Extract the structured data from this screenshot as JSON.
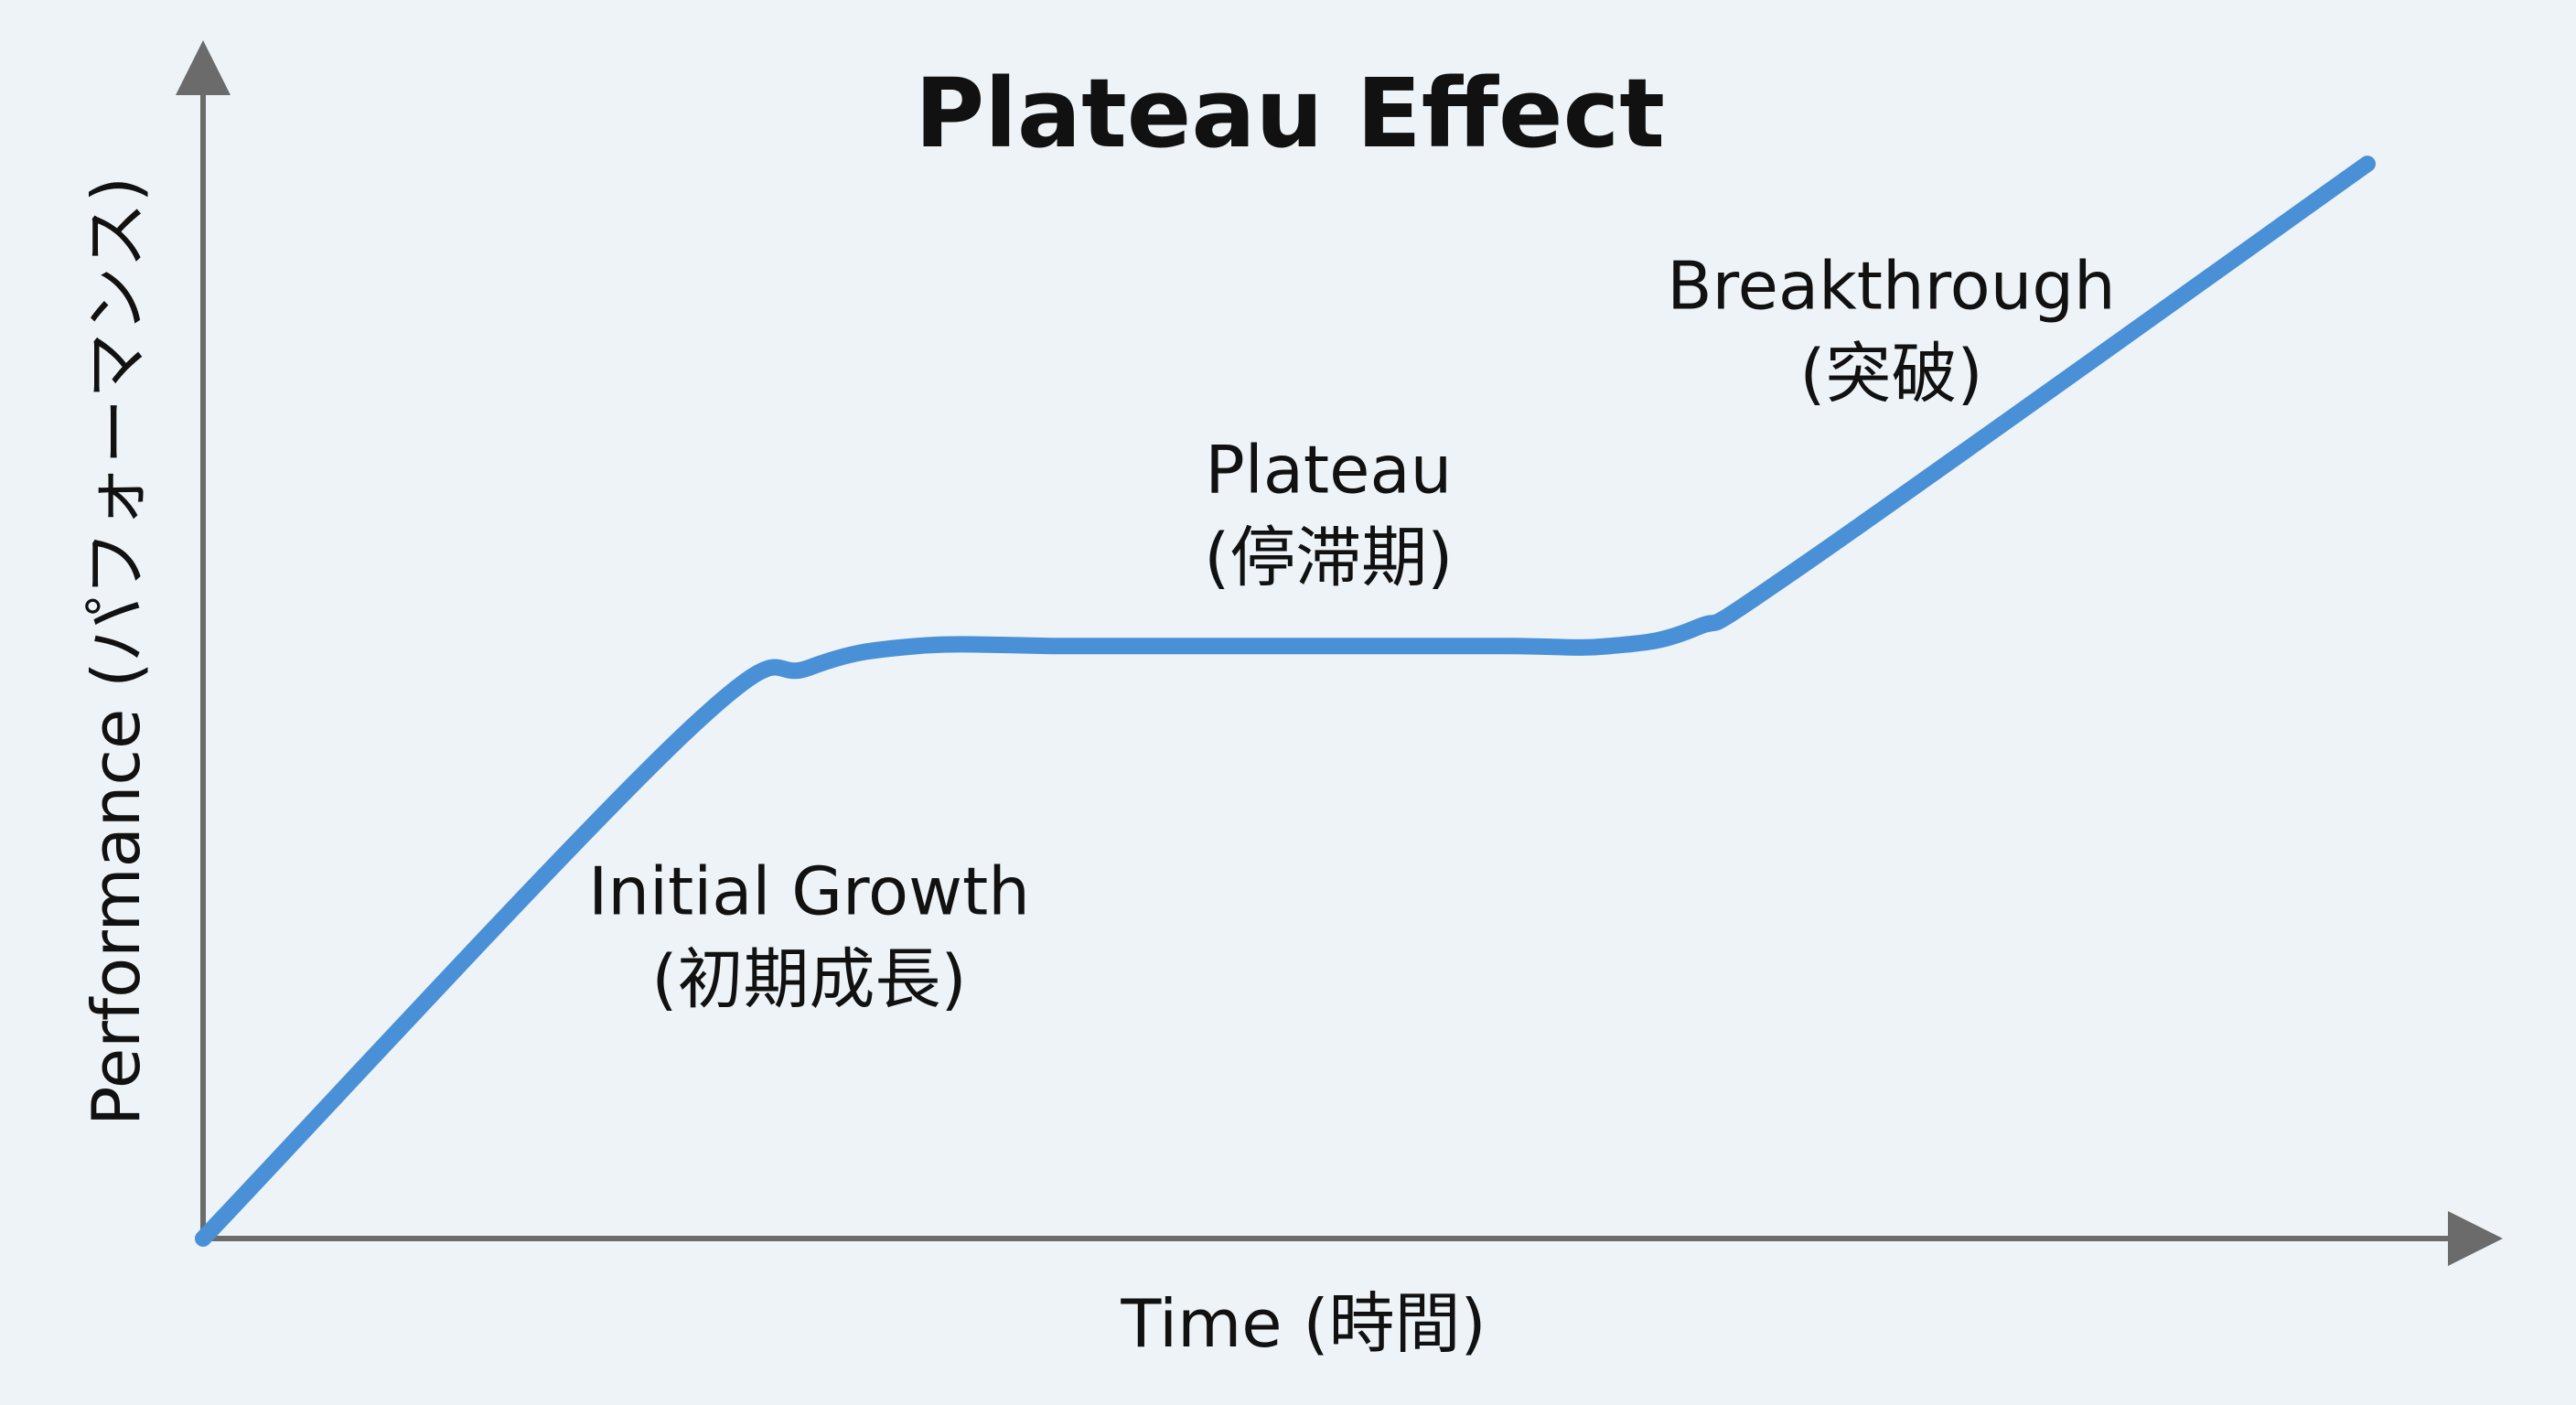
{
  "chart_data": {
    "type": "line",
    "title": "Plateau Effect",
    "xlabel": "Time (時間)",
    "ylabel": "Performance (パフォーマンス)",
    "grid": false,
    "legend": "none",
    "axis_ticks": false,
    "line_color": "#4a90d6",
    "axis_color": "#6b6b6b",
    "background_color": "#edf3f7",
    "xlim": [
      0,
      100
    ],
    "ylim": [
      0,
      100
    ],
    "series": [
      {
        "values": [
          {
            "x": 0,
            "y": 0
          },
          {
            "x": 22.3,
            "y": 46.8
          },
          {
            "x": 28,
            "y": 52.8
          },
          {
            "x": 33,
            "y": 54.8
          },
          {
            "x": 40,
            "y": 54.8
          },
          {
            "x": 50,
            "y": 54.8
          },
          {
            "x": 60,
            "y": 54.8
          },
          {
            "x": 65,
            "y": 54.8
          },
          {
            "x": 69,
            "y": 56.5
          },
          {
            "x": 74,
            "y": 62.4
          },
          {
            "x": 100,
            "y": 99.4
          }
        ]
      }
    ],
    "annotations": [
      {
        "id": "initial",
        "lines": [
          "Initial Growth",
          "(初期成長)"
        ],
        "x": 28,
        "y": 30
      },
      {
        "id": "plateau",
        "lines": [
          "Plateau",
          "(停滞期)"
        ],
        "x": 52,
        "y": 69
      },
      {
        "id": "breakthrough",
        "lines": [
          "Breakthrough",
          "(突破)"
        ],
        "x": 78,
        "y": 86
      }
    ]
  }
}
